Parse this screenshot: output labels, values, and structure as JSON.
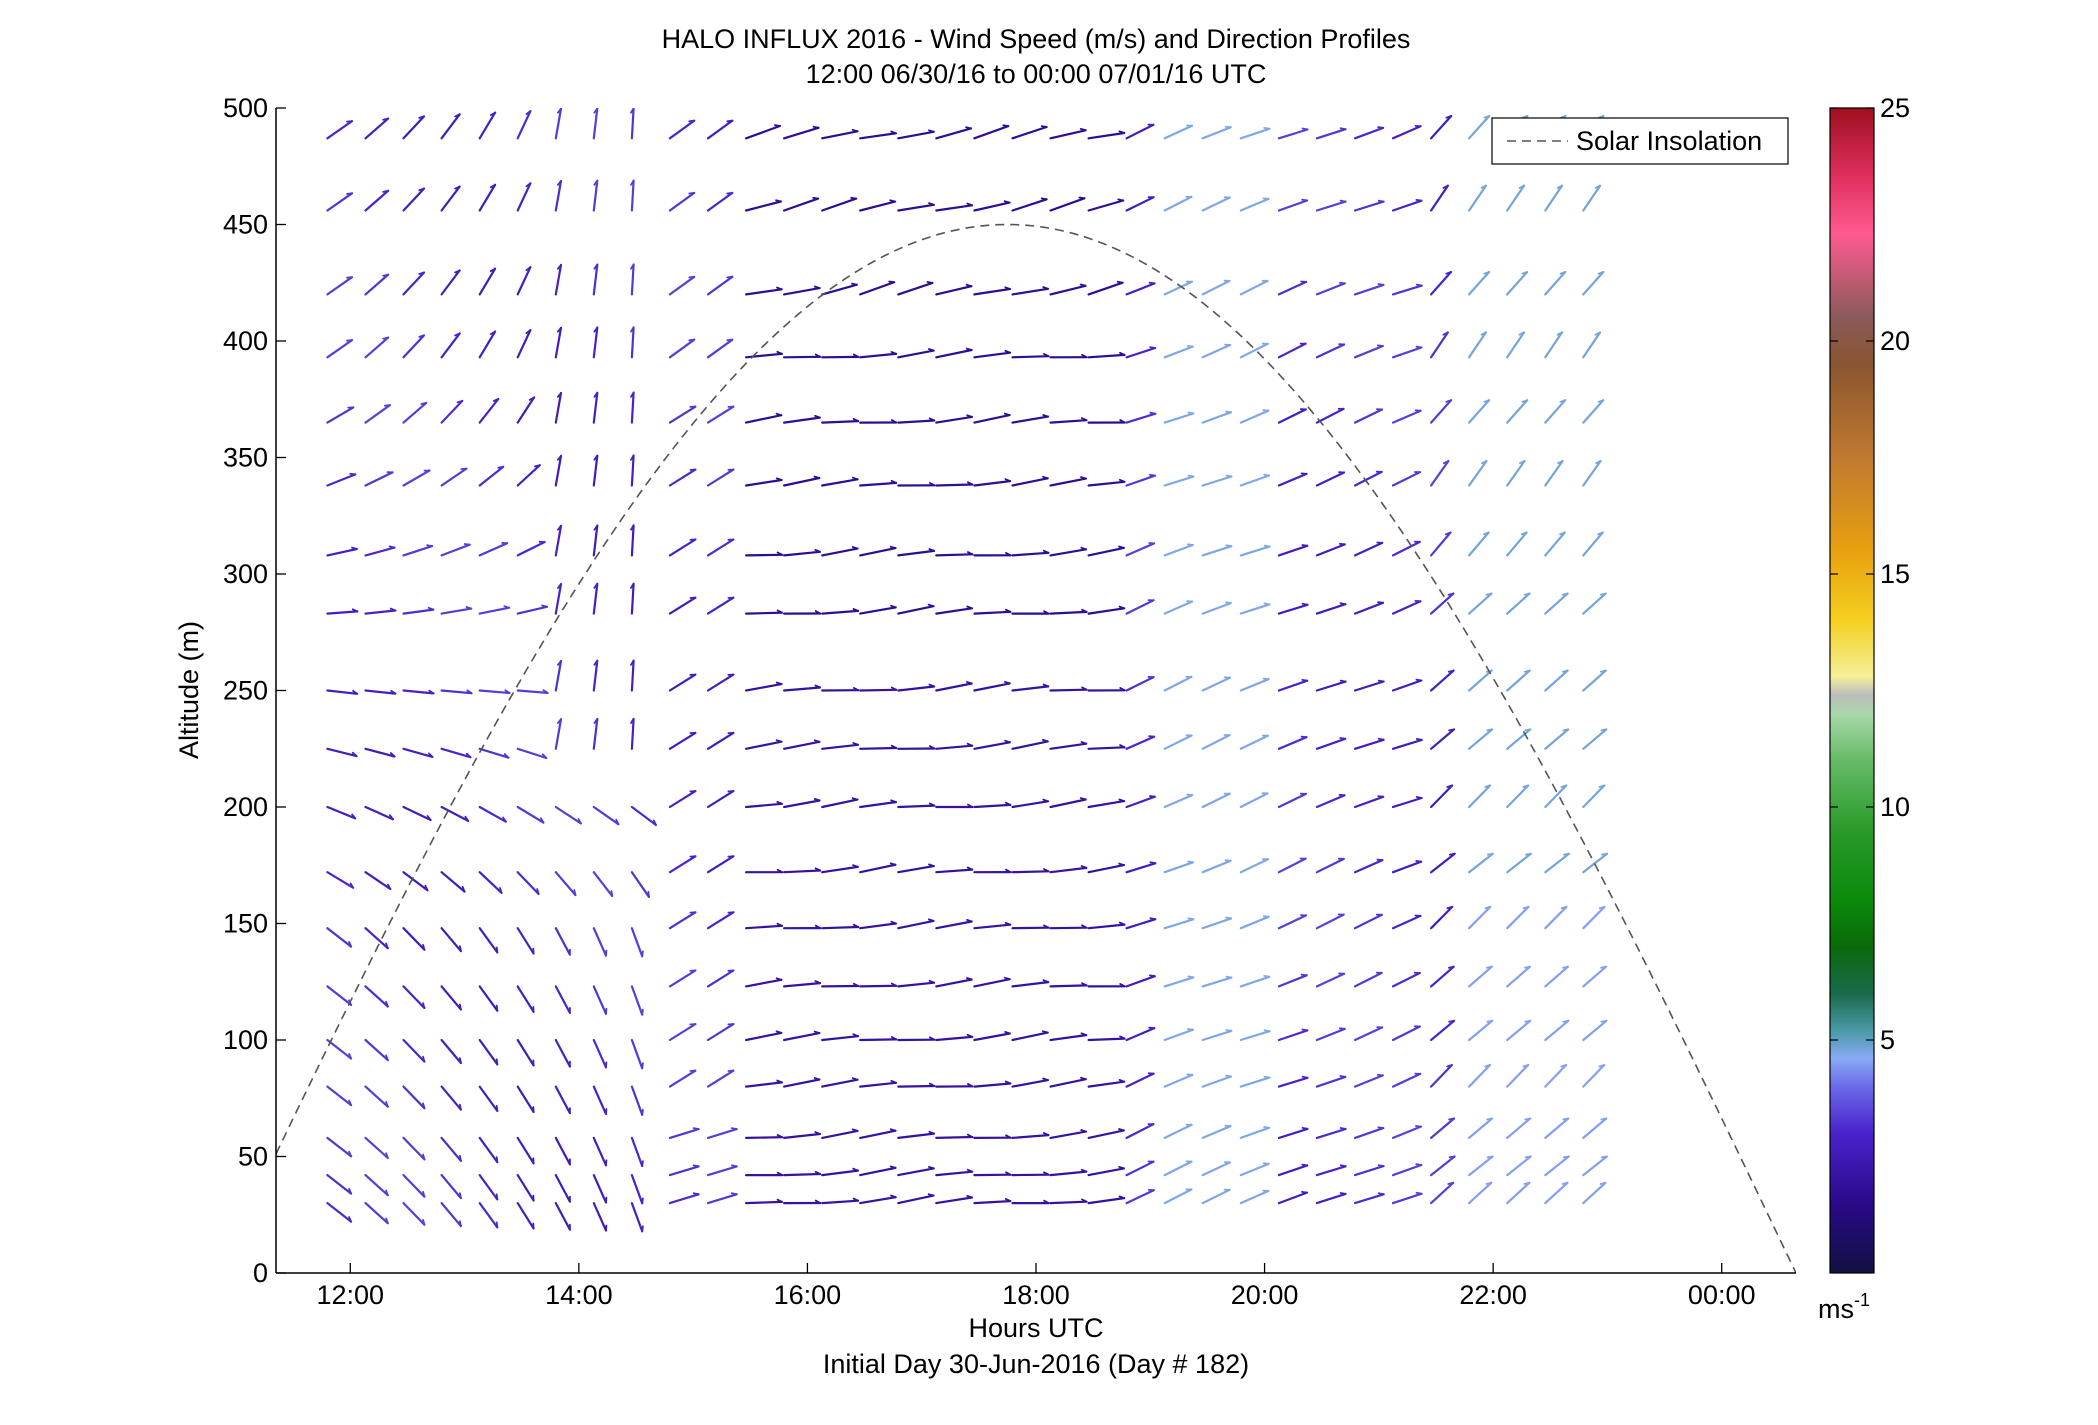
{
  "chart_data": {
    "type": "quiver",
    "title": "HALO INFLUX 2016 - Wind Speed (m/s) and Direction Profiles",
    "subtitle": "12:00 06/30/16 to 00:00 07/01/16  UTC",
    "xlabel": "Hours UTC",
    "xlabel2": "Initial Day 30-Jun-2016 (Day # 182)",
    "ylabel": "Altitude (m)",
    "xlim": [
      11.35,
      24.65
    ],
    "ylim": [
      0,
      500
    ],
    "x_ticks": [
      12,
      14,
      16,
      18,
      20,
      22,
      24
    ],
    "x_tick_labels": [
      "12:00",
      "14:00",
      "16:00",
      "18:00",
      "20:00",
      "22:00",
      "00:00"
    ],
    "y_ticks": [
      0,
      50,
      100,
      150,
      200,
      250,
      300,
      350,
      400,
      450,
      500
    ],
    "y_tick_labels": [
      "0",
      "50",
      "100",
      "150",
      "200",
      "250",
      "300",
      "350",
      "400",
      "450",
      "500"
    ],
    "grid": false,
    "legend": {
      "placement": "top-right",
      "entries": [
        "Solar Insolation"
      ]
    },
    "colorbar": {
      "min": 0,
      "max": 25,
      "ticks": [
        5,
        10,
        15,
        20,
        25
      ],
      "tick_labels": [
        "5",
        "10",
        "15",
        "20",
        "25"
      ],
      "unit_base": "ms",
      "unit_exp": "-1",
      "colors": [
        {
          "v": 0,
          "c": "#101040"
        },
        {
          "v": 1.5,
          "c": "#2a0a8a"
        },
        {
          "v": 3,
          "c": "#4a22cc"
        },
        {
          "v": 4,
          "c": "#6a6ae8"
        },
        {
          "v": 4.6,
          "c": "#88aaf5"
        },
        {
          "v": 5.2,
          "c": "#4a9aa8"
        },
        {
          "v": 6,
          "c": "#1a6a4a"
        },
        {
          "v": 7,
          "c": "#0a6a0a"
        },
        {
          "v": 8,
          "c": "#0a8a0a"
        },
        {
          "v": 9.5,
          "c": "#2a9a2a"
        },
        {
          "v": 11,
          "c": "#66bb66"
        },
        {
          "v": 12,
          "c": "#aad8aa"
        },
        {
          "v": 12.4,
          "c": "#bbbbbb"
        },
        {
          "v": 12.8,
          "c": "#f5f09a"
        },
        {
          "v": 14,
          "c": "#f5d020"
        },
        {
          "v": 15.5,
          "c": "#e8a010"
        },
        {
          "v": 17.5,
          "c": "#c07a30"
        },
        {
          "v": 19.5,
          "c": "#8a5530"
        },
        {
          "v": 20.5,
          "c": "#8a5a5a"
        },
        {
          "v": 22.3,
          "c": "#ff5a90"
        },
        {
          "v": 23.5,
          "c": "#e03060"
        },
        {
          "v": 25,
          "c": "#a01020"
        }
      ]
    },
    "solar_insolation_curve": {
      "style": "dashed",
      "peak_time": 17.75,
      "peak_altitude": 450,
      "half_width_hours": 6.9
    },
    "wind_time_range": [
      11.8,
      22.8
    ],
    "wind_time_step": 0.333,
    "wind_altitudes": [
      30,
      42,
      58,
      80,
      100,
      123,
      148,
      172,
      200,
      225,
      250,
      283,
      308,
      338,
      365,
      393,
      420,
      456,
      487
    ],
    "wind_note": "Each vector is a wind barb at (time, altitude); length proportional to speed, colored by speed on the colorbar scale."
  }
}
